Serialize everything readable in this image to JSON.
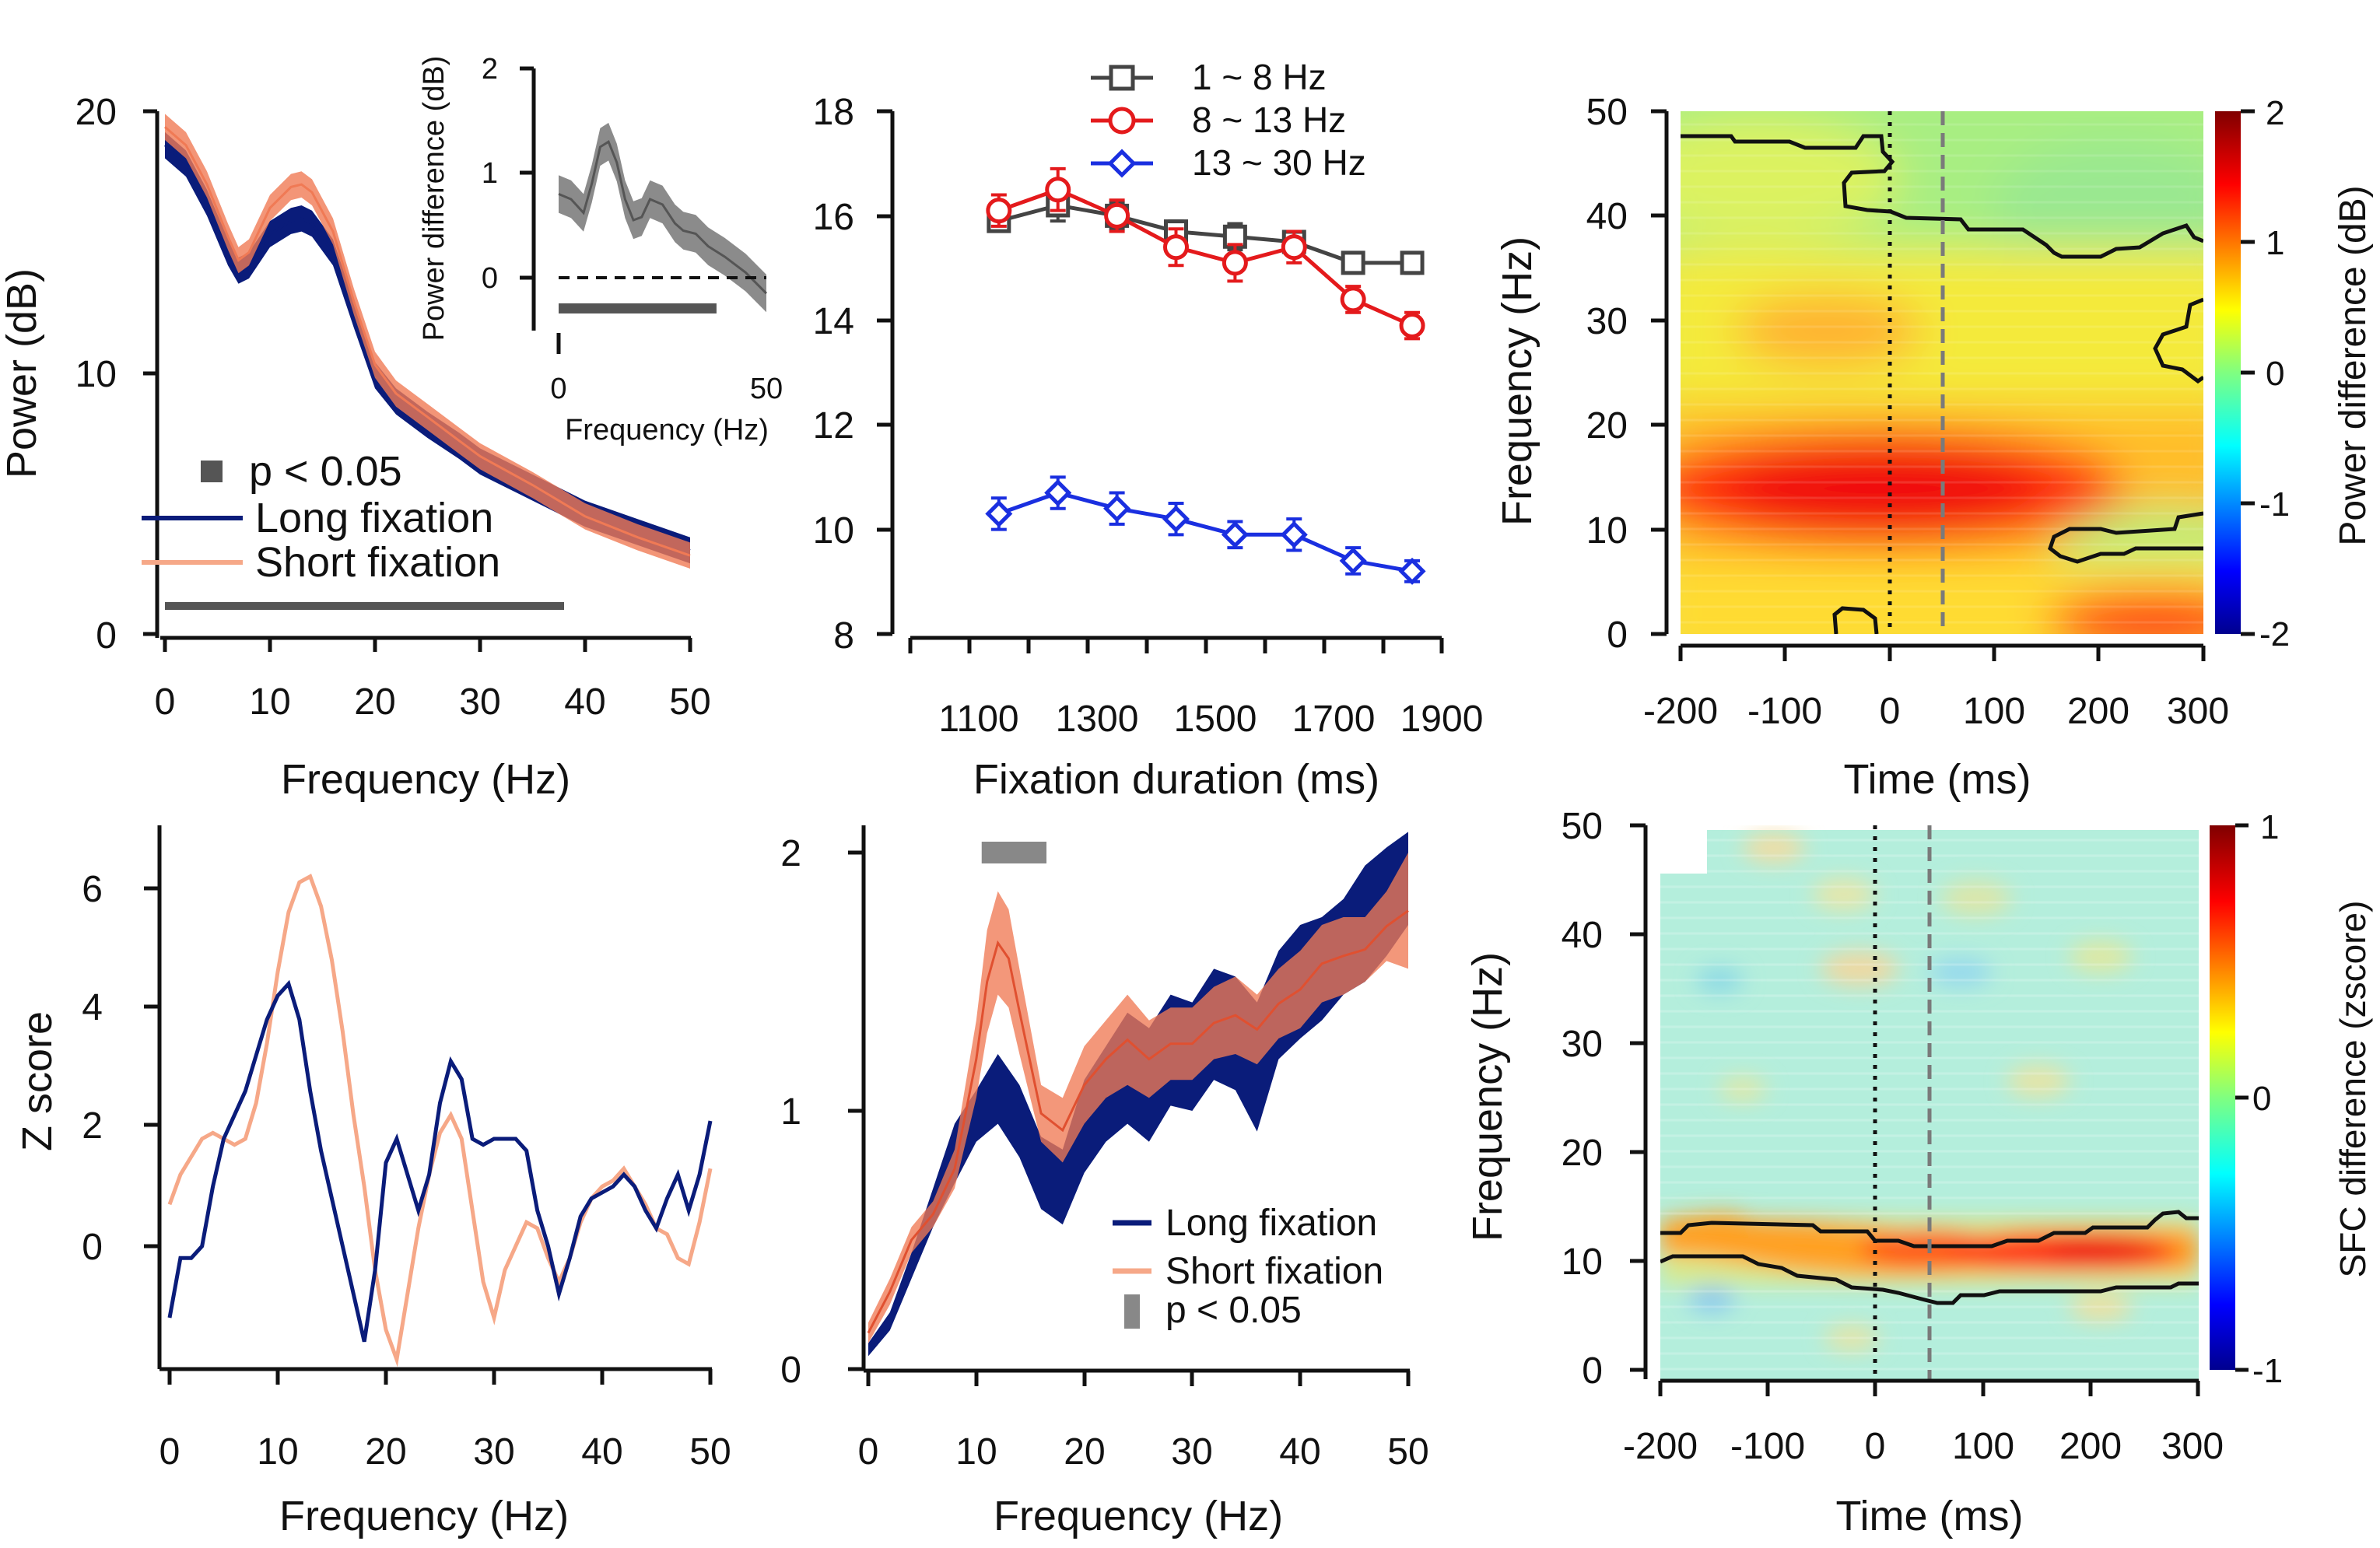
{
  "colors": {
    "long": "#0a1c7a",
    "short": "#f07a55",
    "short_light": "#f6a888",
    "sig": "#555555",
    "diff": "#777777",
    "band_1_8": "#444444",
    "band_8_13": "#e41a1c",
    "band_13_30": "#1a2fe0"
  },
  "chart_data": [
    {
      "id": "power-spectrum",
      "type": "line",
      "xlabel": "Frequency (Hz)",
      "ylabel": "Power (dB)",
      "xlim": [
        0,
        50
      ],
      "ylim": [
        0,
        20
      ],
      "xticks": [
        "0",
        "10",
        "20",
        "30",
        "40",
        "50"
      ],
      "yticks": [
        "0",
        "10",
        "20"
      ],
      "legend": [
        "p < 0.05",
        "Long fixation",
        "Short fixation"
      ],
      "sig_range": [
        0,
        38
      ],
      "series": [
        {
          "name": "Long fixation",
          "x": [
            0,
            2,
            4,
            6,
            7,
            8,
            10,
            12,
            13,
            14,
            16,
            18,
            20,
            22,
            25,
            28,
            30,
            35,
            40,
            45,
            50
          ],
          "y": [
            18.7,
            18,
            16.5,
            14.6,
            13.9,
            14.1,
            15.3,
            15.8,
            15.9,
            15.7,
            14.6,
            12.2,
            9.9,
            8.9,
            8.0,
            7.2,
            6.6,
            5.6,
            4.6,
            3.9,
            3.2
          ],
          "band": 0.5
        },
        {
          "name": "Short fixation",
          "x": [
            0,
            2,
            4,
            6,
            7,
            8,
            10,
            12,
            13,
            14,
            16,
            18,
            20,
            22,
            25,
            28,
            30,
            35,
            40,
            45,
            50
          ],
          "y": [
            19.4,
            18.7,
            17.2,
            15.2,
            14.3,
            14.6,
            16.3,
            17.1,
            17.2,
            16.9,
            15.4,
            12.7,
            10.3,
            9.2,
            8.3,
            7.4,
            6.8,
            5.7,
            4.5,
            3.7,
            3.0
          ],
          "band": 0.5
        }
      ],
      "inset": {
        "xlabel": "Frequency (Hz)",
        "ylabel": "Power difference (dB)",
        "xlim": [
          0,
          50
        ],
        "ylim": [
          -0.4,
          2
        ],
        "xticks": [
          "0",
          "50"
        ],
        "yticks": [
          "0",
          "1",
          "2"
        ],
        "sig_range": [
          0,
          38
        ],
        "x": [
          0,
          3,
          6,
          8,
          10,
          12,
          14,
          16,
          18,
          20,
          22,
          25,
          28,
          30,
          33,
          36,
          40,
          45,
          50
        ],
        "y": [
          0.8,
          0.75,
          0.62,
          0.9,
          1.25,
          1.3,
          1.1,
          0.75,
          0.55,
          0.58,
          0.75,
          0.7,
          0.52,
          0.45,
          0.42,
          0.3,
          0.2,
          0.05,
          -0.15
        ],
        "band": 0.18
      }
    },
    {
      "id": "fixation-duration",
      "type": "line",
      "xlabel": "Fixation duration (ms)",
      "ylabel": "",
      "xlim": [
        1000,
        1900
      ],
      "ylim": [
        8,
        18
      ],
      "xticks": [
        "1100",
        "1300",
        "1500",
        "1700",
        "1900"
      ],
      "yticks": [
        "8",
        "10",
        "12",
        "14",
        "16",
        "18"
      ],
      "x": [
        1150,
        1250,
        1350,
        1450,
        1550,
        1650,
        1750,
        1850
      ],
      "series": [
        {
          "name": "1 ~ 8 Hz",
          "marker": "square",
          "y": [
            15.9,
            16.2,
            16.0,
            15.7,
            15.6,
            15.5,
            15.1,
            15.1
          ],
          "err": [
            0.2,
            0.3,
            0.25,
            0.2,
            0.25,
            0.2,
            0.15,
            0.2
          ]
        },
        {
          "name": "8 ~ 13 Hz",
          "marker": "circle",
          "y": [
            16.1,
            16.5,
            16.0,
            15.4,
            15.1,
            15.4,
            14.4,
            13.9
          ],
          "err": [
            0.3,
            0.4,
            0.3,
            0.35,
            0.35,
            0.3,
            0.25,
            0.25
          ]
        },
        {
          "name": "13 ~ 30 Hz",
          "marker": "diamond",
          "y": [
            10.3,
            10.7,
            10.4,
            10.2,
            9.9,
            9.9,
            9.4,
            9.2
          ],
          "err": [
            0.3,
            0.3,
            0.3,
            0.3,
            0.25,
            0.3,
            0.25,
            0.2
          ]
        }
      ]
    },
    {
      "id": "tf-power-diff",
      "type": "heatmap",
      "xlabel": "Time (ms)",
      "ylabel": "Frequency (Hz)",
      "zlabel": "Power difference (dB)",
      "xlim": [
        -200,
        300
      ],
      "ylim": [
        0,
        50
      ],
      "zlim": [
        -2,
        2
      ],
      "xticks": [
        "-200",
        "-100",
        "0",
        "100",
        "200",
        "300"
      ],
      "yticks": [
        "0",
        "10",
        "20",
        "30",
        "40",
        "50"
      ],
      "zticks": [
        "-2",
        "-1",
        "0",
        "1",
        "2"
      ],
      "markers": [
        0,
        50
      ]
    },
    {
      "id": "zscore",
      "type": "line",
      "xlabel": "Frequency (Hz)",
      "ylabel": "Z score",
      "xlim": [
        0,
        50
      ],
      "ylim": [
        -2,
        7
      ],
      "xticks": [
        "0",
        "10",
        "20",
        "30",
        "40",
        "50"
      ],
      "yticks": [
        "0",
        "2",
        "4",
        "6"
      ],
      "series": [
        {
          "name": "Long fixation",
          "x": [
            0,
            1,
            2,
            3,
            4,
            5,
            6,
            7,
            8,
            9,
            10,
            11,
            12,
            13,
            14,
            15,
            16,
            17,
            18,
            19,
            20,
            21,
            22,
            23,
            24,
            25,
            26,
            27,
            28,
            29,
            30,
            31,
            32,
            33,
            34,
            35,
            36,
            37,
            38,
            39,
            40,
            41,
            42,
            43,
            44,
            45,
            46,
            47,
            48,
            49,
            50
          ],
          "y": [
            -1.2,
            -0.2,
            -0.2,
            0.0,
            1.0,
            1.8,
            2.2,
            2.6,
            3.2,
            3.8,
            4.2,
            4.4,
            3.8,
            2.6,
            1.6,
            0.8,
            0.0,
            -0.8,
            -1.6,
            -0.4,
            1.4,
            1.8,
            1.2,
            0.6,
            1.2,
            2.4,
            3.1,
            2.8,
            1.8,
            1.7,
            1.8,
            1.8,
            1.8,
            1.6,
            0.6,
            0.0,
            -0.8,
            -0.2,
            0.5,
            0.8,
            0.9,
            1.0,
            1.2,
            1.0,
            0.6,
            0.3,
            0.8,
            1.2,
            0.6,
            1.2,
            2.1
          ]
        },
        {
          "name": "Short fixation",
          "x": [
            0,
            1,
            2,
            3,
            4,
            5,
            6,
            7,
            8,
            9,
            10,
            11,
            12,
            13,
            14,
            15,
            16,
            17,
            18,
            19,
            20,
            21,
            22,
            23,
            24,
            25,
            26,
            27,
            28,
            29,
            30,
            31,
            32,
            33,
            34,
            35,
            36,
            37,
            38,
            39,
            40,
            41,
            42,
            43,
            44,
            45,
            46,
            47,
            48,
            49,
            50
          ],
          "y": [
            0.7,
            1.2,
            1.5,
            1.8,
            1.9,
            1.8,
            1.7,
            1.8,
            2.4,
            3.4,
            4.6,
            5.6,
            6.1,
            6.2,
            5.7,
            4.8,
            3.6,
            2.2,
            1.0,
            -0.4,
            -1.4,
            -1.9,
            -0.8,
            0.3,
            1.2,
            1.9,
            2.2,
            1.8,
            0.6,
            -0.6,
            -1.2,
            -0.4,
            0.0,
            0.4,
            0.3,
            -0.2,
            -0.6,
            -0.2,
            0.4,
            0.8,
            1.0,
            1.1,
            1.3,
            1.0,
            0.7,
            0.3,
            0.2,
            -0.2,
            -0.3,
            0.4,
            1.3
          ]
        }
      ]
    },
    {
      "id": "sfc-spectrum",
      "type": "area",
      "xlabel": "Frequency (Hz)",
      "ylabel": "",
      "xlim": [
        0,
        50
      ],
      "ylim": [
        0,
        2
      ],
      "xticks": [
        "0",
        "10",
        "20",
        "30",
        "40",
        "50"
      ],
      "yticks": [
        "0",
        "1",
        "2"
      ],
      "legend": [
        "Long fixation",
        "Short fixation",
        "p < 0.05"
      ],
      "sig_range": [
        10.5,
        16.5
      ],
      "series": [
        {
          "name": "Long fixation",
          "x": [
            0,
            2,
            4,
            6,
            8,
            10,
            12,
            14,
            16,
            18,
            20,
            22,
            24,
            26,
            28,
            30,
            32,
            34,
            36,
            38,
            40,
            42,
            44,
            46,
            48,
            50
          ],
          "lower": [
            0.05,
            0.15,
            0.35,
            0.55,
            0.72,
            0.88,
            0.95,
            0.82,
            0.62,
            0.56,
            0.76,
            0.88,
            0.95,
            0.88,
            1.02,
            1.0,
            1.12,
            1.08,
            0.92,
            1.2,
            1.28,
            1.35,
            1.45,
            1.5,
            1.6,
            1.72
          ],
          "upper": [
            0.1,
            0.22,
            0.45,
            0.7,
            0.95,
            1.08,
            1.22,
            1.1,
            0.9,
            0.85,
            1.12,
            1.25,
            1.38,
            1.32,
            1.45,
            1.42,
            1.55,
            1.52,
            1.42,
            1.62,
            1.72,
            1.75,
            1.82,
            1.95,
            2.02,
            2.08
          ]
        },
        {
          "name": "Short fixation",
          "x": [
            0,
            2,
            4,
            6,
            8,
            10,
            11,
            12,
            13,
            14,
            16,
            18,
            20,
            22,
            24,
            26,
            28,
            30,
            32,
            34,
            36,
            38,
            40,
            42,
            44,
            46,
            48,
            50
          ],
          "lower": [
            0.1,
            0.25,
            0.45,
            0.55,
            0.7,
            1.05,
            1.3,
            1.45,
            1.4,
            1.22,
            0.88,
            0.8,
            0.95,
            1.05,
            1.1,
            1.05,
            1.12,
            1.12,
            1.2,
            1.22,
            1.18,
            1.28,
            1.32,
            1.42,
            1.45,
            1.5,
            1.58,
            1.55
          ],
          "upper": [
            0.18,
            0.35,
            0.55,
            0.65,
            0.85,
            1.35,
            1.7,
            1.85,
            1.78,
            1.55,
            1.1,
            1.05,
            1.25,
            1.35,
            1.45,
            1.35,
            1.4,
            1.4,
            1.48,
            1.52,
            1.45,
            1.55,
            1.62,
            1.72,
            1.75,
            1.75,
            1.85,
            2.0
          ]
        }
      ]
    },
    {
      "id": "tf-sfc-diff",
      "type": "heatmap",
      "xlabel": "Time (ms)",
      "ylabel": "Frequency (Hz)",
      "zlabel": "SFC difference (zscore)",
      "xlim": [
        -200,
        300
      ],
      "ylim": [
        0,
        50
      ],
      "zlim": [
        -1,
        1
      ],
      "xticks": [
        "-200",
        "-100",
        "0",
        "100",
        "200",
        "300"
      ],
      "yticks": [
        "0",
        "10",
        "20",
        "30",
        "40",
        "50"
      ],
      "zticks": [
        "-1",
        "0",
        "1"
      ],
      "markers": [
        0,
        50
      ]
    }
  ]
}
